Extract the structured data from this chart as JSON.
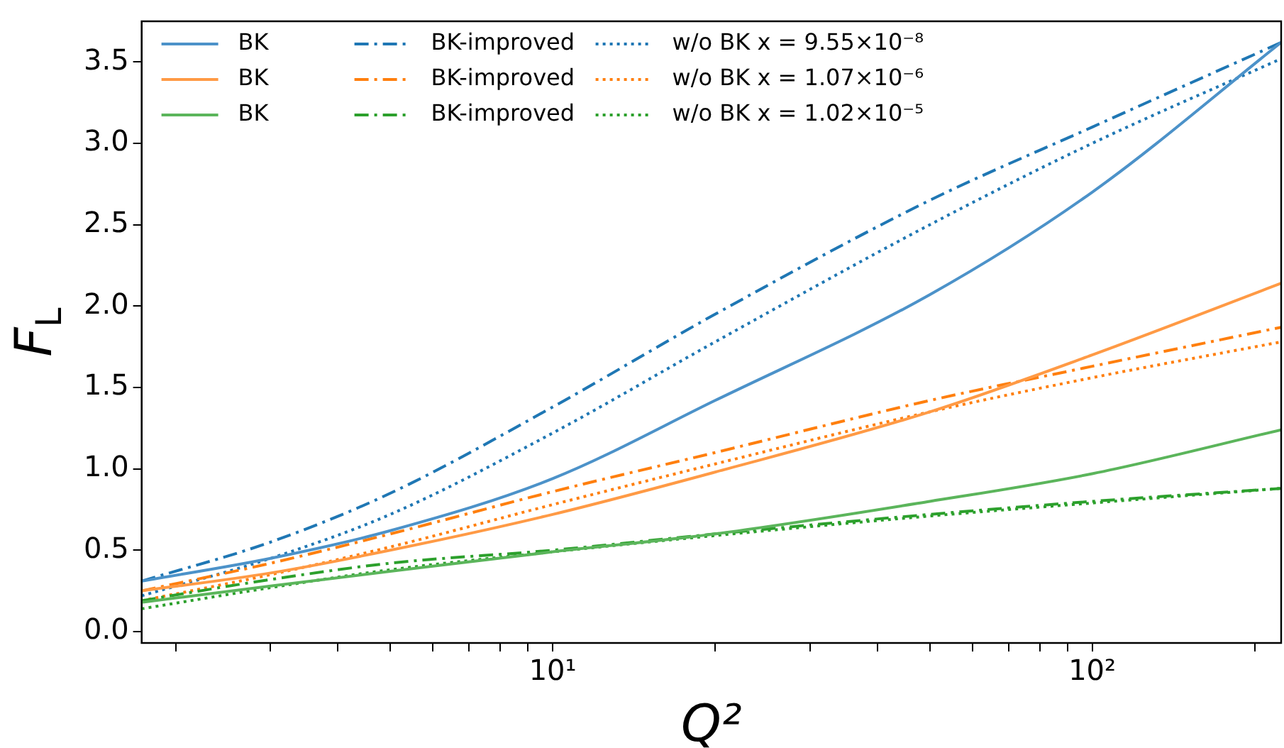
{
  "chart_data": {
    "type": "line",
    "xlabel": "Q²",
    "ylabel": "F$_{L}$",
    "log": "x",
    "grid": false,
    "legend": "top left",
    "xlim": [
      1.73,
      224
    ],
    "ylim": [
      -0.07,
      3.75
    ],
    "xticks": [
      {
        "value": 2,
        "label": null
      },
      {
        "value": 3,
        "label": null
      },
      {
        "value": 4,
        "label": null
      },
      {
        "value": 5,
        "label": null
      },
      {
        "value": 6,
        "label": null
      },
      {
        "value": 7,
        "label": null
      },
      {
        "value": 8,
        "label": null
      },
      {
        "value": 9,
        "label": null
      },
      {
        "value": 10,
        "label": "10¹"
      },
      {
        "value": 20,
        "label": null
      },
      {
        "value": 30,
        "label": null
      },
      {
        "value": 40,
        "label": null
      },
      {
        "value": 50,
        "label": null
      },
      {
        "value": 60,
        "label": null
      },
      {
        "value": 70,
        "label": null
      },
      {
        "value": 80,
        "label": null
      },
      {
        "value": 90,
        "label": null
      },
      {
        "value": 100,
        "label": "10²"
      },
      {
        "value": 200,
        "label": null
      }
    ],
    "yticks": [
      {
        "value": 0,
        "label": "0.0"
      },
      {
        "value": 0.5,
        "label": "0.5"
      },
      {
        "value": 1,
        "label": "1.0"
      },
      {
        "value": 1.5,
        "label": "1.5"
      },
      {
        "value": 2,
        "label": "2.0"
      },
      {
        "value": 2.5,
        "label": "2.5"
      },
      {
        "value": 3,
        "label": "3.0"
      },
      {
        "value": 3.5,
        "label": "3.5"
      }
    ],
    "x": [
      1.73,
      3,
      5,
      10,
      20,
      50,
      100,
      224
    ],
    "series": [
      {
        "name": "BK",
        "color": "#4c92c9",
        "line_style": "solid",
        "values": [
          0.31,
          0.45,
          0.62,
          0.94,
          1.42,
          2.07,
          2.7,
          3.62
        ]
      },
      {
        "name": "BK",
        "color": "#ff9a45",
        "line_style": "solid",
        "values": [
          0.25,
          0.36,
          0.5,
          0.72,
          0.98,
          1.35,
          1.7,
          2.14
        ]
      },
      {
        "name": "BK",
        "color": "#5bb55b",
        "line_style": "solid",
        "values": [
          0.18,
          0.28,
          0.37,
          0.49,
          0.6,
          0.8,
          0.97,
          1.24
        ]
      },
      {
        "name": "BK-improved",
        "color": "#1f77b4",
        "line_style": "dashdot",
        "values": [
          0.31,
          0.55,
          0.85,
          1.38,
          1.95,
          2.65,
          3.1,
          3.62
        ]
      },
      {
        "name": "BK-improved",
        "color": "#ff7f0e",
        "line_style": "dashdot",
        "values": [
          0.25,
          0.42,
          0.6,
          0.86,
          1.1,
          1.42,
          1.63,
          1.87
        ]
      },
      {
        "name": "BK-improved",
        "color": "#2ca02c",
        "line_style": "dashdot",
        "values": [
          0.19,
          0.32,
          0.42,
          0.5,
          0.6,
          0.72,
          0.8,
          0.88
        ]
      },
      {
        "name": "w/o BK x = 9.55×10⁻⁸",
        "color": "#1f77b4",
        "line_style": "dotted",
        "values": [
          0.22,
          0.45,
          0.72,
          1.22,
          1.78,
          2.5,
          3.0,
          3.52
        ]
      },
      {
        "name": "w/o BK x = 1.07×10⁻⁶",
        "color": "#ff7f0e",
        "line_style": "dotted",
        "values": [
          0.19,
          0.35,
          0.52,
          0.78,
          1.03,
          1.35,
          1.56,
          1.78
        ]
      },
      {
        "name": "w/o BK x = 1.02×10⁻⁵",
        "color": "#2ca02c",
        "line_style": "dotted",
        "values": [
          0.14,
          0.27,
          0.38,
          0.49,
          0.59,
          0.71,
          0.79,
          0.88
        ]
      }
    ]
  }
}
